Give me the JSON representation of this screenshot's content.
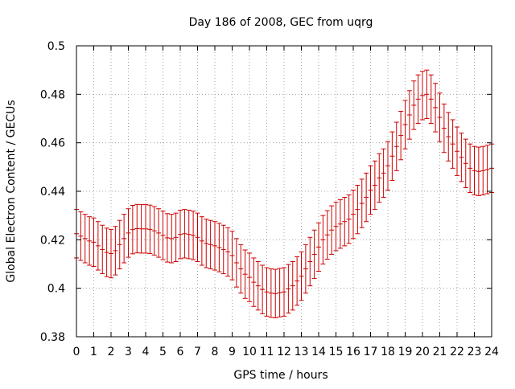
{
  "chart_data": {
    "type": "line",
    "title": "Day 186 of 2008, GEC from uqrg",
    "xlabel": "GPS time / hours",
    "ylabel": "Global Electron Content / GECUs",
    "xlim": [
      0,
      24
    ],
    "ylim": [
      0.38,
      0.5
    ],
    "xticks": [
      0,
      1,
      2,
      3,
      4,
      5,
      6,
      7,
      8,
      9,
      10,
      11,
      12,
      13,
      14,
      15,
      16,
      17,
      18,
      19,
      20,
      21,
      22,
      23,
      24
    ],
    "xtick_labels": [
      "0",
      "1",
      "2",
      "3",
      "4",
      "5",
      "6",
      "7",
      "8",
      "9",
      "10",
      "11",
      "12",
      "13",
      "14",
      "15",
      "16",
      "17",
      "18",
      "19",
      "20",
      "21",
      "22",
      "23",
      "24"
    ],
    "yticks": [
      0.38,
      0.4,
      0.42,
      0.44,
      0.46,
      0.48,
      0.5
    ],
    "ytick_labels": [
      "0.38",
      "0.4",
      "0.42",
      "0.44",
      "0.46",
      "0.48",
      "0.5"
    ],
    "grid": true,
    "series_color": "#cc0000",
    "series": [
      {
        "name": "GEC",
        "error": 0.01,
        "x": [
          0,
          0.25,
          0.5,
          0.75,
          1,
          1.25,
          1.5,
          1.75,
          2,
          2.25,
          2.5,
          2.75,
          3,
          3.25,
          3.5,
          3.75,
          4,
          4.25,
          4.5,
          4.75,
          5,
          5.25,
          5.5,
          5.75,
          6,
          6.25,
          6.5,
          6.75,
          7,
          7.25,
          7.5,
          7.75,
          8,
          8.25,
          8.5,
          8.75,
          9,
          9.25,
          9.5,
          9.75,
          10,
          10.25,
          10.5,
          10.75,
          11,
          11.25,
          11.5,
          11.75,
          12,
          12.25,
          12.5,
          12.75,
          13,
          13.25,
          13.5,
          13.75,
          14,
          14.25,
          14.5,
          14.75,
          15,
          15.25,
          15.5,
          15.75,
          16,
          16.25,
          16.5,
          16.75,
          17,
          17.25,
          17.5,
          17.75,
          18,
          18.25,
          18.5,
          18.75,
          19,
          19.25,
          19.5,
          19.75,
          20,
          20.25,
          20.5,
          20.75,
          21,
          21.25,
          21.5,
          21.75,
          22,
          22.25,
          22.5,
          22.75,
          23,
          23.25,
          23.5,
          23.75,
          24
        ],
        "values": [
          0.4225,
          0.4215,
          0.4205,
          0.4195,
          0.419,
          0.4175,
          0.416,
          0.4148,
          0.4143,
          0.4155,
          0.418,
          0.4205,
          0.4228,
          0.4242,
          0.4246,
          0.4245,
          0.4245,
          0.4243,
          0.4237,
          0.4228,
          0.4218,
          0.4208,
          0.4205,
          0.421,
          0.4222,
          0.4225,
          0.4222,
          0.4218,
          0.421,
          0.4195,
          0.4185,
          0.418,
          0.4175,
          0.4168,
          0.416,
          0.415,
          0.4135,
          0.4105,
          0.408,
          0.4058,
          0.4045,
          0.4025,
          0.401,
          0.3995,
          0.3985,
          0.398,
          0.3978,
          0.3982,
          0.3985,
          0.3998,
          0.401,
          0.403,
          0.405,
          0.408,
          0.411,
          0.414,
          0.417,
          0.42,
          0.422,
          0.424,
          0.4255,
          0.4265,
          0.4275,
          0.4285,
          0.4305,
          0.4325,
          0.435,
          0.4375,
          0.4405,
          0.4425,
          0.4455,
          0.4475,
          0.4505,
          0.4545,
          0.4585,
          0.463,
          0.4675,
          0.4715,
          0.4755,
          0.478,
          0.4795,
          0.48,
          0.478,
          0.4745,
          0.4705,
          0.466,
          0.4625,
          0.4595,
          0.4565,
          0.454,
          0.4515,
          0.4495,
          0.4485,
          0.4482,
          0.4485,
          0.449,
          0.4495
        ]
      }
    ]
  }
}
